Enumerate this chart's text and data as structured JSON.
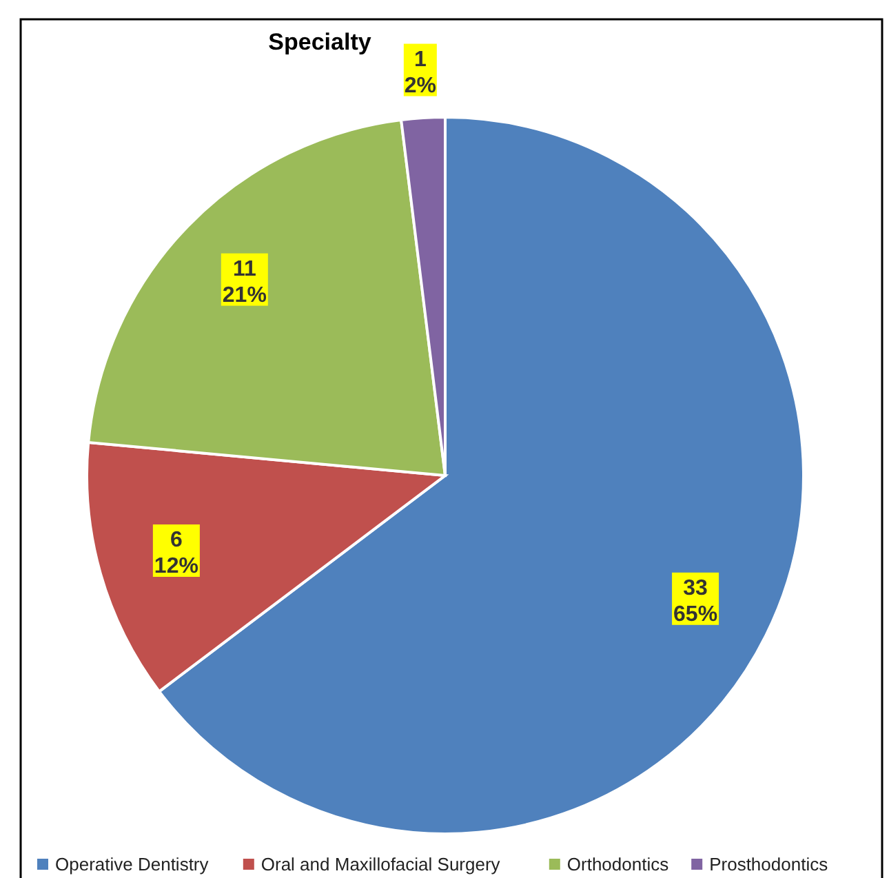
{
  "chart_data": {
    "type": "pie",
    "title": "Specialty",
    "categories": [
      "Operative Dentistry",
      "Oral and Maxillofacial Surgery",
      "Orthodontics",
      "Prosthodontics"
    ],
    "values": [
      33,
      6,
      11,
      1
    ],
    "colors": [
      "#4f81bd",
      "#c0504d",
      "#9bbb59",
      "#8064a2"
    ],
    "value_labels": [
      "33\n65%",
      "6\n12%",
      "11\n21%",
      "1\n2%"
    ],
    "legend": "bottom"
  }
}
